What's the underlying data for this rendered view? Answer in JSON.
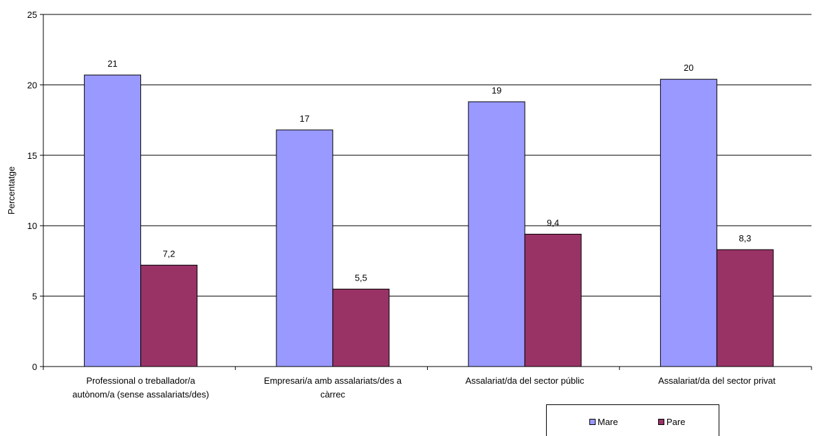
{
  "chart_data": {
    "type": "bar",
    "ylabel": "Percentatge",
    "ylim": [
      0,
      25
    ],
    "yticks": [
      0,
      5,
      10,
      15,
      20,
      25
    ],
    "grid": true,
    "legend_position": "bottom-right",
    "categories": [
      [
        "Professional o treballador/a",
        "autònom/a (sense assalariats/des)"
      ],
      [
        "Empresari/a amb assalariats/des a",
        "càrrec"
      ],
      [
        "Assalariat/da del sector públic"
      ],
      [
        "Assalariat/da del sector privat"
      ]
    ],
    "series": [
      {
        "name": "Mare",
        "color": "#9999ff",
        "values": [
          20.7,
          16.8,
          18.8,
          20.4
        ],
        "labels": [
          "21",
          "17",
          "19",
          "20"
        ]
      },
      {
        "name": "Pare",
        "color": "#993366",
        "values": [
          7.2,
          5.5,
          9.4,
          8.3
        ],
        "labels": [
          "7,2",
          "5,5",
          "9,4",
          "8,3"
        ]
      }
    ]
  }
}
